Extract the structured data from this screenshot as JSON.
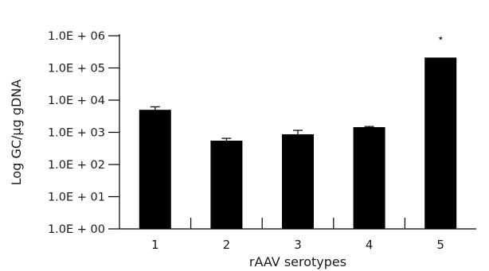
{
  "chart_data": {
    "type": "bar",
    "title": "",
    "xlabel": "rAAV serotypes",
    "ylabel": "Log GC/µg gDNA",
    "categories": [
      "1",
      "2",
      "3",
      "4",
      "5"
    ],
    "values": [
      5000,
      550,
      870,
      1450,
      210000
    ],
    "error_upper": [
      6200,
      650,
      1150,
      1520,
      null
    ],
    "y_scale": "log",
    "ylim": [
      1,
      1000000
    ],
    "y_ticks": [
      {
        "value": 1,
        "label": "1.0E + 00"
      },
      {
        "value": 10,
        "label": "1.0E + 01"
      },
      {
        "value": 100,
        "label": "1.0E + 02"
      },
      {
        "value": 1000,
        "label": "1.0E + 03"
      },
      {
        "value": 10000,
        "label": "1.0E + 04"
      },
      {
        "value": 100000,
        "label": "1.0E + 05"
      },
      {
        "value": 1000000,
        "label": "1.0E + 06"
      }
    ],
    "annotations": [
      {
        "category": "5",
        "text": "⋆"
      }
    ],
    "bar_color": "#000000",
    "grid": false,
    "legend": "none"
  }
}
